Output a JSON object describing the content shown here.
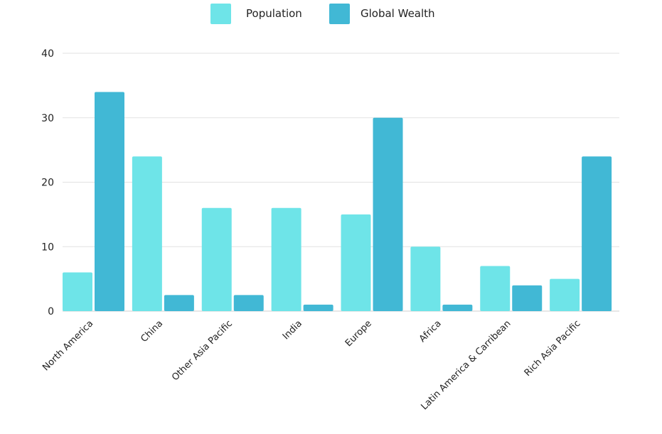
{
  "chart_data": {
    "type": "bar",
    "categories": [
      "North America",
      "China",
      "Other Asia Pacific",
      "India",
      "Europe",
      "Africa",
      "Latin America & Carribean",
      "Rich Asia Pacific"
    ],
    "series": [
      {
        "name": "Population",
        "color": "#6ee4e8",
        "values": [
          6,
          24,
          16,
          16,
          15,
          10,
          7,
          5
        ]
      },
      {
        "name": "Global Wealth",
        "color": "#41b8d5",
        "values": [
          34,
          2.5,
          2.5,
          1,
          30,
          1,
          4,
          24
        ]
      }
    ],
    "ylim": [
      0,
      40
    ],
    "yticks": [
      0,
      10,
      20,
      30,
      40
    ],
    "grid": true,
    "legend_position": "top-center"
  }
}
